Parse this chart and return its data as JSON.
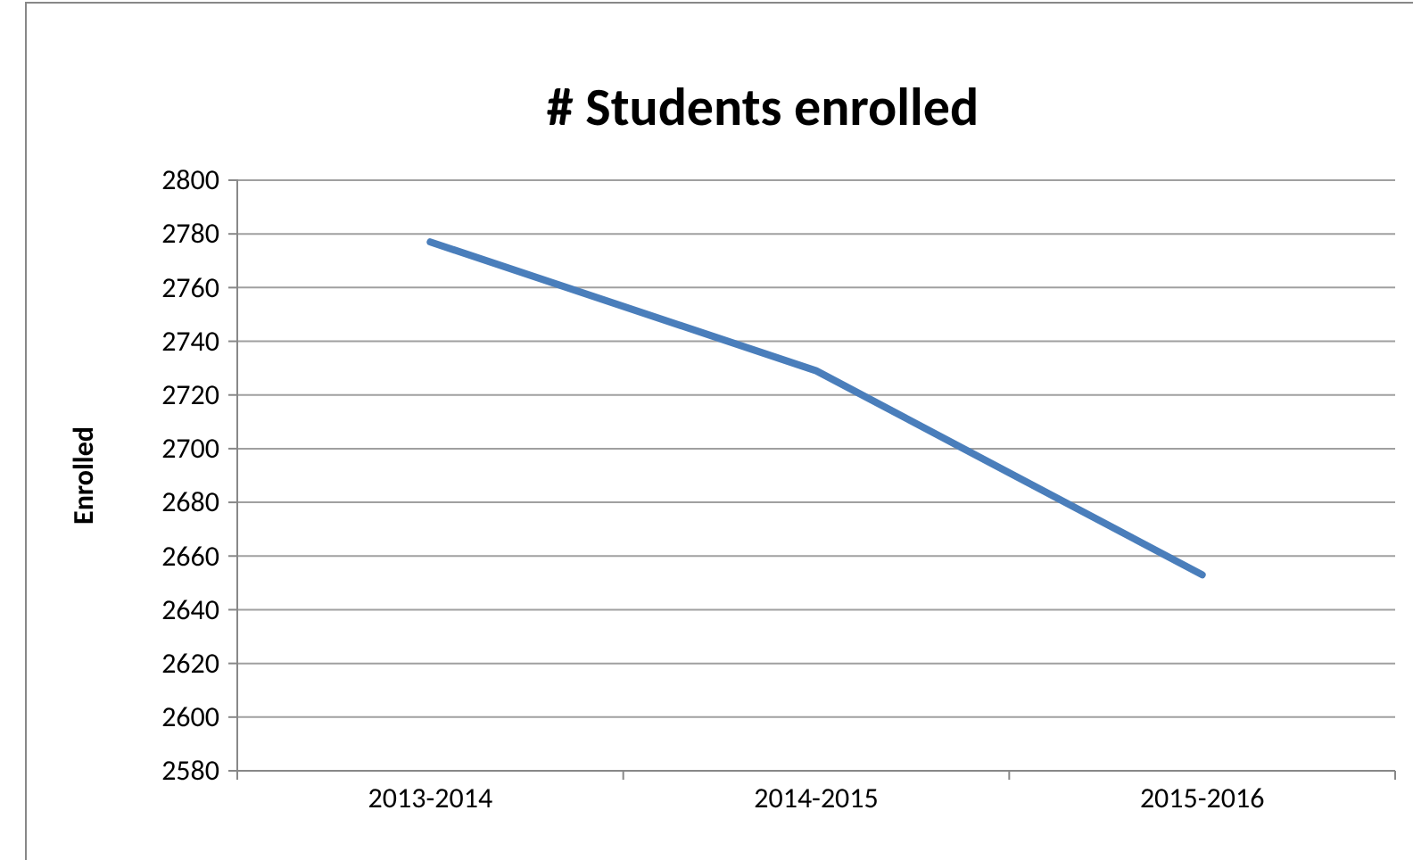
{
  "chart_data": {
    "type": "line",
    "title": "# Students enrolled",
    "ylabel": "Enrolled",
    "categories": [
      "2013-2014",
      "2014-2015",
      "2015-2016"
    ],
    "series": [
      {
        "color": "#4a7ebb",
        "values": [
          2777,
          2729,
          2653
        ]
      }
    ],
    "ylim": [
      2580,
      2800
    ],
    "yticks": [
      2580,
      2600,
      2620,
      2640,
      2660,
      2680,
      2700,
      2720,
      2740,
      2760,
      2780,
      2800
    ],
    "grid": "y",
    "legend": false,
    "marker": "none",
    "line_style": "solid"
  }
}
